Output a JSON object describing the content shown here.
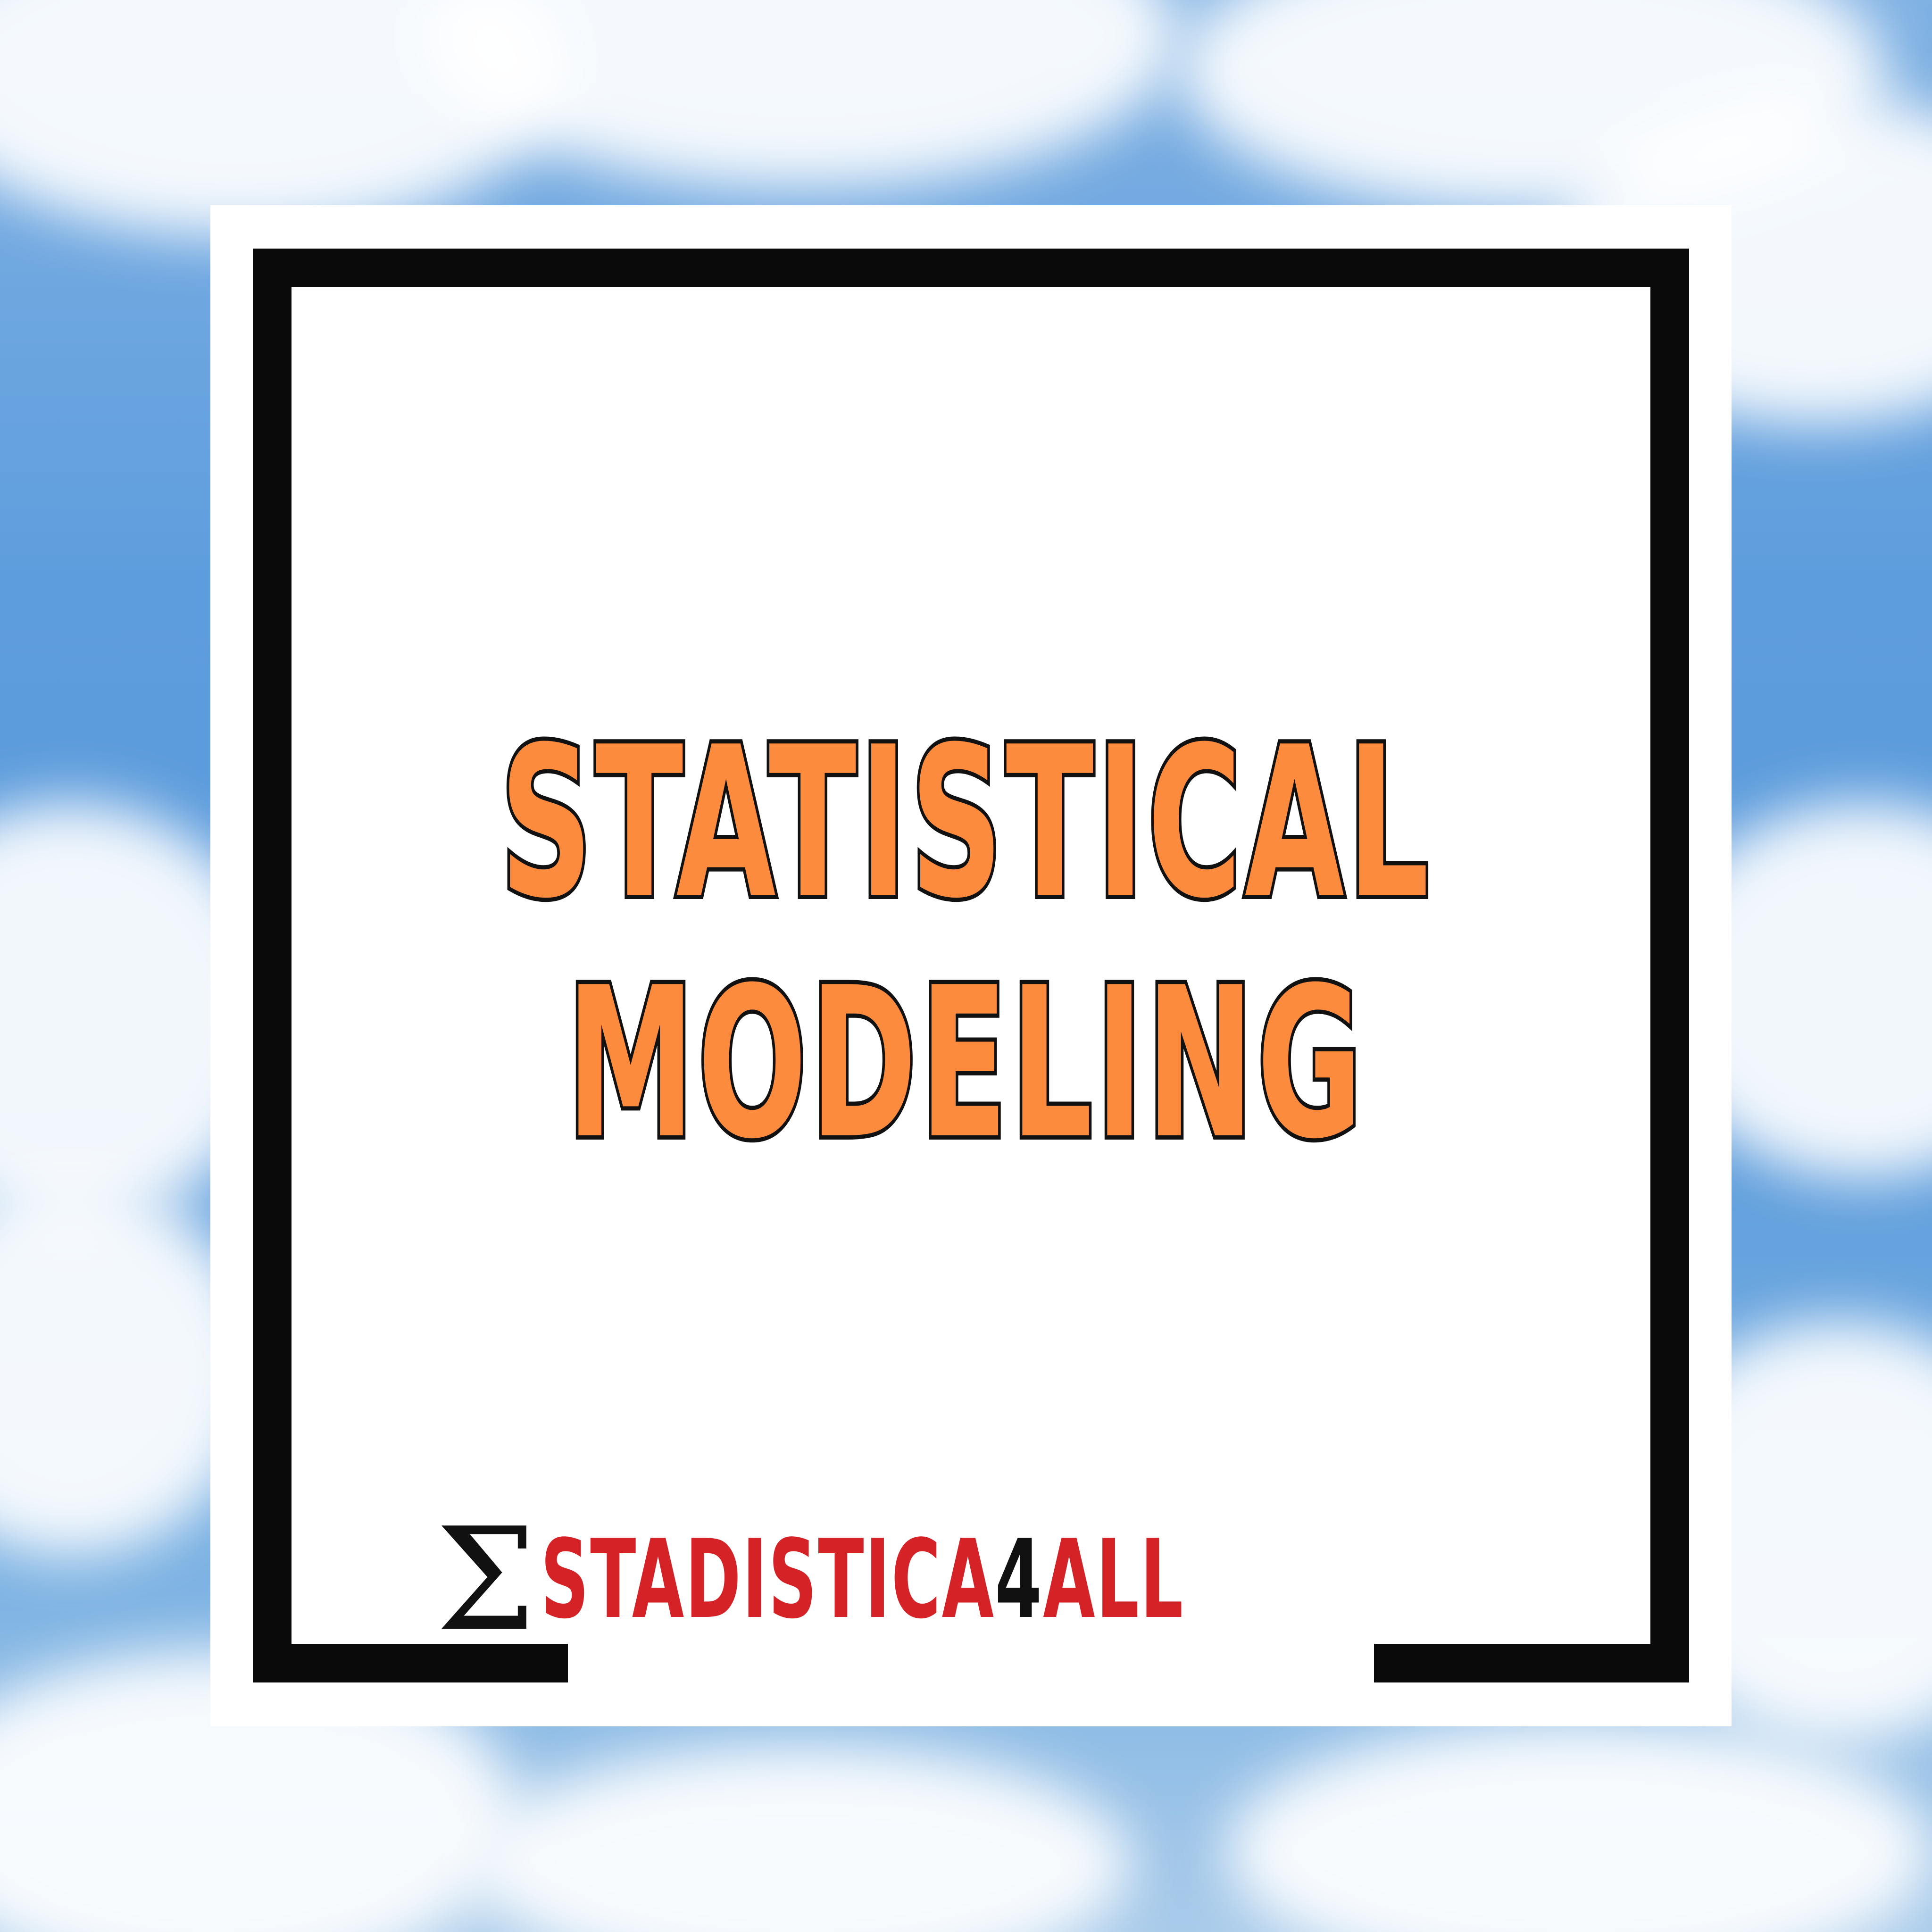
{
  "title": {
    "line1": "STATISTICAL",
    "line2": "MODELING"
  },
  "logo": {
    "symbol": "Σ",
    "part1": "STADISTICA",
    "part2": "4",
    "part3": "ALL"
  },
  "colors": {
    "title_fill": "#fd8b3d",
    "title_outline": "#111111",
    "logo_red": "#d42227",
    "frame": "#0a0a0a",
    "card": "#ffffff",
    "sky": "#5a9adb"
  }
}
